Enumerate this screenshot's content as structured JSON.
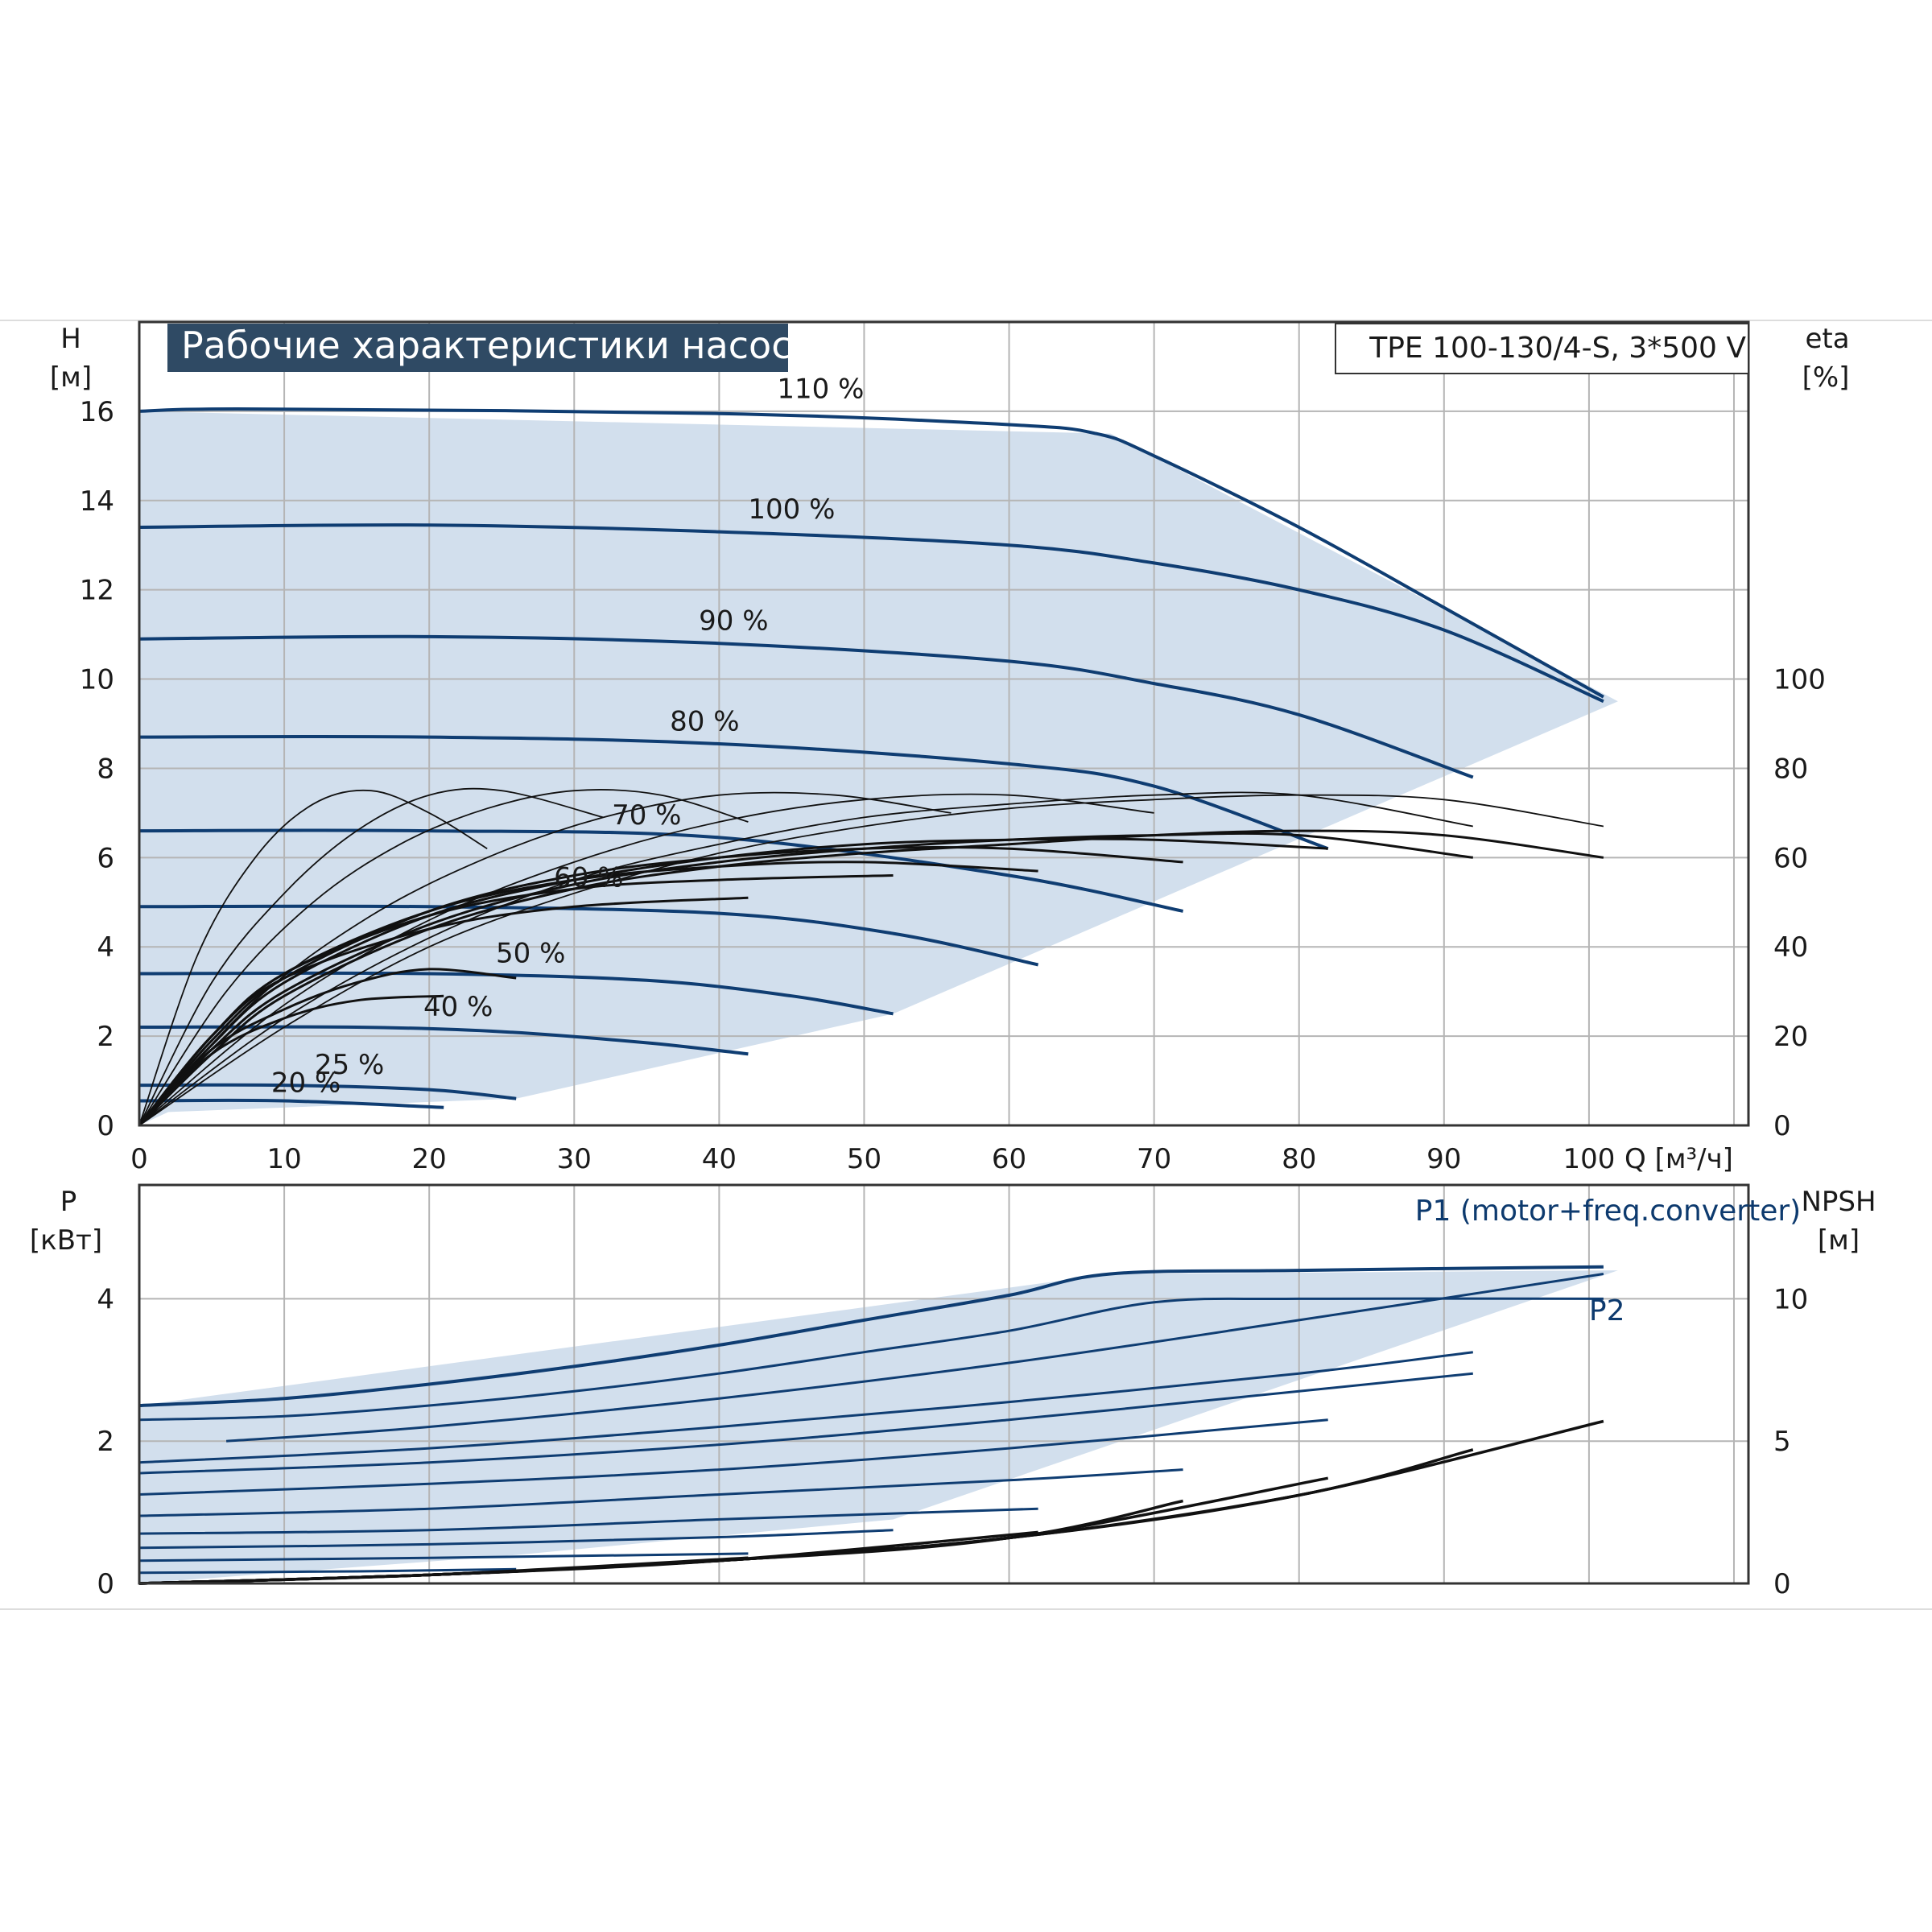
{
  "chart_data": [
    {
      "type": "line",
      "title": "Рабочие характеристики насоса",
      "model": "TPE 100-130/4-S, 3*500 V",
      "ylabel": "H",
      "yunit": "[м]",
      "y2label": "eta",
      "y2unit": "[%]",
      "xlabel_text": "Q [м³/ч]",
      "xlim": [
        0,
        111
      ],
      "ylim": [
        0,
        18
      ],
      "y2lim": [
        0,
        180
      ],
      "xticks": [
        0,
        10,
        20,
        30,
        40,
        50,
        60,
        70,
        80,
        90,
        100
      ],
      "xtick_labels": [
        "0",
        "10",
        "20",
        "30",
        "40",
        "50",
        "60",
        "70",
        "80",
        "90",
        "100"
      ],
      "yticks": [
        0,
        2,
        4,
        6,
        8,
        10,
        12,
        14,
        16
      ],
      "ytick_labels": [
        "0",
        "2",
        "4",
        "6",
        "8",
        "10",
        "12",
        "14",
        "16"
      ],
      "y2ticks": [
        0,
        20,
        40,
        60,
        80,
        100
      ],
      "y2tick_labels": [
        "0",
        "20",
        "40",
        "60",
        "80",
        "100"
      ],
      "grid": true,
      "operating_area": [
        [
          0,
          16
        ],
        [
          67,
          15.5
        ],
        [
          102,
          9.5
        ],
        [
          52,
          2.5
        ],
        [
          26,
          0.6
        ],
        [
          2,
          0.3
        ],
        [
          0,
          0
        ]
      ],
      "head_series": [
        {
          "name": "110 %",
          "label_at": [
            47,
            16.3
          ],
          "x": [
            0,
            8,
            40,
            60,
            66,
            70,
            80,
            90,
            101
          ],
          "y": [
            16.0,
            16.05,
            15.95,
            15.7,
            15.5,
            15.0,
            13.4,
            11.6,
            9.6
          ]
        },
        {
          "name": "100 %",
          "label_at": [
            45,
            13.6
          ],
          "x": [
            0,
            20,
            40,
            60,
            70,
            80,
            90,
            101
          ],
          "y": [
            13.4,
            13.45,
            13.3,
            13.0,
            12.6,
            12.0,
            11.1,
            9.5
          ]
        },
        {
          "name": "90 %",
          "label_at": [
            41,
            11.1
          ],
          "x": [
            0,
            20,
            40,
            60,
            70,
            80,
            92
          ],
          "y": [
            10.9,
            10.95,
            10.8,
            10.4,
            9.9,
            9.2,
            7.8
          ]
        },
        {
          "name": "80 %",
          "label_at": [
            39,
            8.85
          ],
          "x": [
            0,
            20,
            40,
            60,
            70,
            82
          ],
          "y": [
            8.7,
            8.7,
            8.55,
            8.1,
            7.6,
            6.2
          ]
        },
        {
          "name": "70 %",
          "label_at": [
            35,
            6.75
          ],
          "x": [
            0,
            20,
            40,
            60,
            72
          ],
          "y": [
            6.6,
            6.6,
            6.45,
            5.6,
            4.8
          ]
        },
        {
          "name": "60 %",
          "label_at": [
            31,
            5.35
          ],
          "x": [
            0,
            20,
            40,
            52,
            62
          ],
          "y": [
            4.9,
            4.9,
            4.75,
            4.3,
            3.6
          ]
        },
        {
          "name": "50 %",
          "label_at": [
            27,
            3.65
          ],
          "x": [
            0,
            20,
            35,
            45,
            52
          ],
          "y": [
            3.4,
            3.4,
            3.25,
            2.9,
            2.5
          ]
        },
        {
          "name": "40 %",
          "label_at": [
            22,
            2.45
          ],
          "x": [
            0,
            15,
            25,
            35,
            42
          ],
          "y": [
            2.2,
            2.2,
            2.1,
            1.85,
            1.6
          ]
        },
        {
          "name": "25 %",
          "label_at": [
            14.5,
            1.15
          ],
          "x": [
            0,
            10,
            20,
            26
          ],
          "y": [
            0.9,
            0.9,
            0.8,
            0.6
          ]
        },
        {
          "name": "20 %",
          "label_at": [
            11.5,
            0.75
          ],
          "x": [
            0,
            10,
            21
          ],
          "y": [
            0.55,
            0.55,
            0.4
          ]
        }
      ],
      "eta_series": [
        {
          "name": "",
          "x": [
            0,
            5,
            10,
            20,
            30,
            40,
            50,
            60,
            70,
            80,
            90,
            101
          ],
          "y": [
            0,
            16,
            29,
            44,
            53,
            58,
            61,
            63,
            65,
            66,
            65,
            60
          ]
        },
        {
          "name": "",
          "x": [
            0,
            5,
            10,
            20,
            30,
            40,
            50,
            60,
            70,
            80,
            92
          ],
          "y": [
            0,
            17,
            30,
            45,
            54,
            59,
            62,
            64,
            65,
            65,
            60
          ]
        },
        {
          "name": "",
          "x": [
            0,
            5,
            10,
            20,
            30,
            40,
            50,
            60,
            70,
            82
          ],
          "y": [
            0,
            18,
            32,
            47,
            55,
            60,
            63,
            64,
            64,
            62
          ]
        },
        {
          "name": "",
          "x": [
            0,
            5,
            10,
            20,
            30,
            40,
            50,
            60,
            72
          ],
          "y": [
            0,
            19,
            33,
            48,
            56,
            60,
            62,
            62,
            59
          ]
        },
        {
          "name": "",
          "x": [
            0,
            5,
            10,
            20,
            30,
            40,
            50,
            62
          ],
          "y": [
            0,
            20,
            34,
            48,
            55,
            58,
            59,
            57
          ]
        },
        {
          "name": "",
          "x": [
            0,
            5,
            10,
            20,
            30,
            40,
            52
          ],
          "y": [
            0,
            20,
            34,
            47,
            53,
            55,
            56
          ]
        },
        {
          "name": "",
          "x": [
            0,
            5,
            10,
            20,
            30,
            42
          ],
          "y": [
            0,
            20,
            33,
            44,
            49,
            51
          ]
        },
        {
          "name": "",
          "x": [
            0,
            5,
            10,
            15,
            20,
            26
          ],
          "y": [
            0,
            17,
            26,
            32,
            35,
            33
          ]
        },
        {
          "name": "",
          "x": [
            0,
            5,
            10,
            15,
            21
          ],
          "y": [
            0,
            16,
            24,
            28,
            29
          ]
        },
        {
          "name": "",
          "x": [
            0,
            4,
            8,
            12,
            16,
            20,
            24
          ],
          "y": [
            0,
            38,
            60,
            72,
            75,
            70,
            62
          ]
        },
        {
          "name": "",
          "x": [
            0,
            5,
            10,
            15,
            20,
            25,
            32
          ],
          "y": [
            0,
            32,
            52,
            66,
            74,
            75,
            69
          ]
        },
        {
          "name": "",
          "x": [
            0,
            6,
            12,
            18,
            24,
            30,
            36,
            42
          ],
          "y": [
            0,
            30,
            50,
            63,
            71,
            75,
            74,
            68
          ]
        },
        {
          "name": "",
          "x": [
            0,
            8,
            16,
            24,
            32,
            40,
            48,
            56
          ],
          "y": [
            0,
            28,
            47,
            60,
            69,
            74,
            74,
            70
          ]
        },
        {
          "name": "",
          "x": [
            0,
            10,
            20,
            30,
            40,
            50,
            60,
            70
          ],
          "y": [
            0,
            27,
            46,
            59,
            68,
            73,
            74,
            70
          ]
        },
        {
          "name": "",
          "x": [
            0,
            10,
            20,
            30,
            40,
            50,
            60,
            70,
            80,
            92
          ],
          "y": [
            0,
            24,
            42,
            55,
            63,
            69,
            72,
            74,
            74,
            67
          ]
        },
        {
          "name": "",
          "x": [
            0,
            10,
            20,
            30,
            40,
            50,
            60,
            70,
            80,
            90,
            101
          ],
          "y": [
            0,
            22,
            40,
            52,
            61,
            67,
            71,
            73,
            74,
            73,
            67
          ]
        }
      ]
    },
    {
      "type": "line",
      "ylabel": "P",
      "yunit": "[кВт]",
      "y2label": "NPSH",
      "y2unit": "[м]",
      "xlim": [
        0,
        111
      ],
      "ylim": [
        0,
        5.6
      ],
      "y2lim": [
        0,
        14
      ],
      "yticks": [
        0,
        2,
        4
      ],
      "ytick_labels": [
        "0",
        "2",
        "4"
      ],
      "y2ticks": [
        0,
        5,
        10
      ],
      "y2tick_labels": [
        "0",
        "5",
        "10"
      ],
      "grid": true,
      "operating_area": [
        [
          0,
          2.5
        ],
        [
          67,
          4.35
        ],
        [
          102,
          4.4
        ],
        [
          52,
          0.9
        ],
        [
          26,
          0.4
        ],
        [
          0,
          0
        ]
      ],
      "power_series": [
        {
          "name": "P1 (motor+freq.converter)",
          "label_at": [
            88,
            5.1
          ],
          "x": [
            0,
            10,
            20,
            30,
            40,
            50,
            60,
            67,
            80,
            101
          ],
          "y": [
            2.5,
            2.6,
            2.8,
            3.05,
            3.35,
            3.7,
            4.05,
            4.35,
            4.4,
            4.45
          ]
        },
        {
          "name": "P2",
          "label_at": [
            100,
            3.7
          ],
          "x": [
            0,
            10,
            20,
            30,
            40,
            50,
            60,
            70,
            80,
            101
          ],
          "y": [
            2.3,
            2.35,
            2.5,
            2.7,
            2.95,
            3.25,
            3.55,
            3.95,
            4.0,
            4.0
          ]
        },
        {
          "name": "",
          "x": [
            6,
            20,
            40,
            60,
            80,
            101
          ],
          "y": [
            2.0,
            2.2,
            2.6,
            3.1,
            3.7,
            4.35
          ]
        },
        {
          "name": "",
          "x": [
            0,
            20,
            40,
            60,
            80,
            92
          ],
          "y": [
            1.7,
            1.9,
            2.2,
            2.55,
            2.95,
            3.25
          ]
        },
        {
          "name": "",
          "x": [
            0,
            20,
            40,
            60,
            80,
            92
          ],
          "y": [
            1.55,
            1.7,
            1.95,
            2.3,
            2.7,
            2.95
          ]
        },
        {
          "name": "",
          "x": [
            0,
            20,
            40,
            60,
            82
          ],
          "y": [
            1.25,
            1.4,
            1.6,
            1.9,
            2.3
          ]
        },
        {
          "name": "",
          "x": [
            0,
            20,
            40,
            60,
            72
          ],
          "y": [
            0.95,
            1.05,
            1.25,
            1.45,
            1.6
          ]
        },
        {
          "name": "",
          "x": [
            0,
            20,
            40,
            62
          ],
          "y": [
            0.7,
            0.75,
            0.9,
            1.05
          ]
        },
        {
          "name": "",
          "x": [
            0,
            20,
            40,
            52
          ],
          "y": [
            0.5,
            0.55,
            0.65,
            0.75
          ]
        },
        {
          "name": "",
          "x": [
            0,
            20,
            42
          ],
          "y": [
            0.32,
            0.36,
            0.42
          ]
        },
        {
          "name": "",
          "x": [
            0,
            15,
            26
          ],
          "y": [
            0.15,
            0.17,
            0.2
          ]
        }
      ],
      "npsh_series": [
        {
          "name": "",
          "x": [
            0,
            20,
            40,
            60,
            80,
            101
          ],
          "y": [
            0.0,
            0.3,
            0.8,
            1.6,
            3.1,
            5.7
          ]
        },
        {
          "name": "",
          "x": [
            0,
            20,
            40,
            60,
            80,
            92
          ],
          "y": [
            0.0,
            0.3,
            0.8,
            1.6,
            3.1,
            4.7
          ]
        },
        {
          "name": "",
          "x": [
            0,
            20,
            40,
            60,
            82
          ],
          "y": [
            0.0,
            0.3,
            0.8,
            1.6,
            3.7
          ]
        },
        {
          "name": "",
          "x": [
            0,
            20,
            40,
            60,
            72
          ],
          "y": [
            0.0,
            0.3,
            0.8,
            1.6,
            2.9
          ]
        },
        {
          "name": "",
          "x": [
            0,
            20,
            40,
            62
          ],
          "y": [
            0.0,
            0.3,
            0.8,
            1.8
          ]
        },
        {
          "name": "",
          "x": [
            0,
            20,
            40,
            52
          ],
          "y": [
            0.0,
            0.3,
            0.8,
            1.3
          ]
        },
        {
          "name": "",
          "x": [
            0,
            20,
            42
          ],
          "y": [
            0.0,
            0.3,
            0.9
          ]
        }
      ]
    }
  ]
}
